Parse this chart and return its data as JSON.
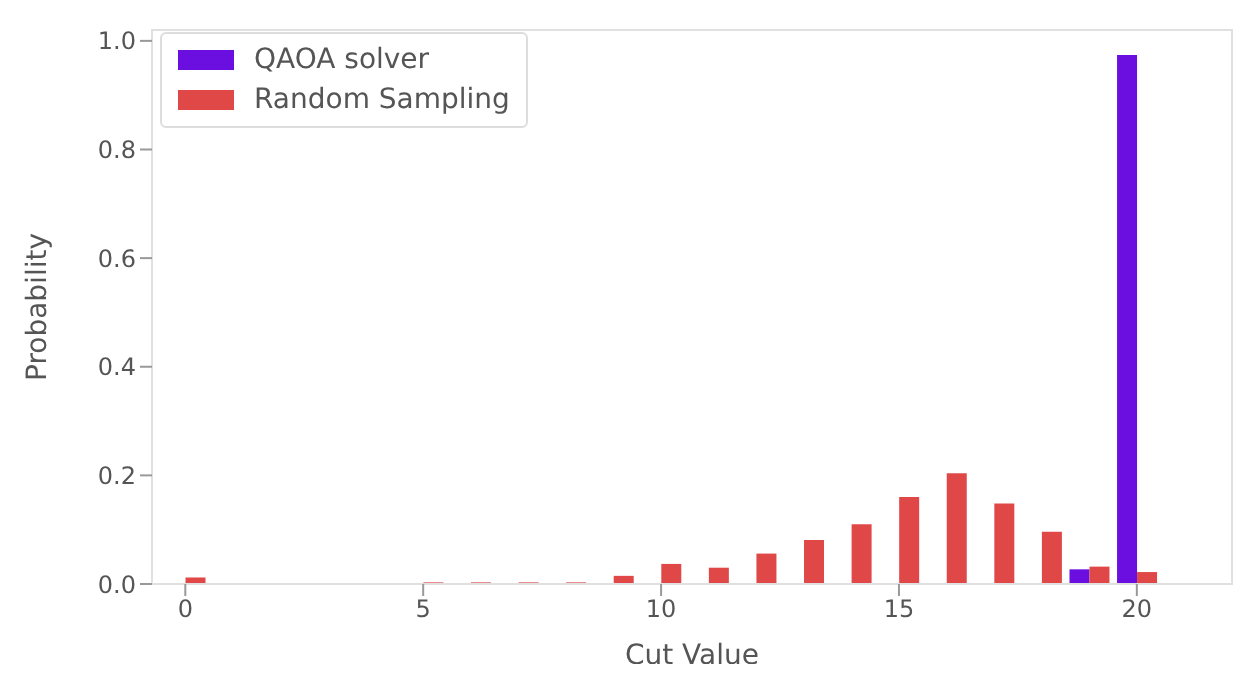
{
  "chart_data": {
    "type": "bar",
    "xlabel": "Cut Value",
    "ylabel": "Probability",
    "x": [
      0,
      1,
      2,
      3,
      4,
      5,
      6,
      7,
      8,
      9,
      10,
      11,
      12,
      13,
      14,
      15,
      16,
      17,
      18,
      19,
      20
    ],
    "series": [
      {
        "name": "QAOA solver",
        "color": "#6a0fe0",
        "values": [
          0,
          0,
          0,
          0,
          0,
          0,
          0,
          0,
          0,
          0,
          0,
          0,
          0,
          0,
          0,
          0,
          0,
          0,
          0,
          0.027,
          0.974
        ]
      },
      {
        "name": "Random Sampling",
        "color": "#e04848",
        "values": [
          0.012,
          0,
          0,
          0,
          0,
          0.003,
          0.003,
          0.003,
          0.003,
          0.015,
          0.037,
          0.03,
          0.056,
          0.081,
          0.11,
          0.16,
          0.204,
          0.148,
          0.096,
          0.032,
          0.022
        ]
      }
    ],
    "xlim": [
      -0.7,
      22
    ],
    "xticks": [
      0,
      5,
      10,
      15,
      20
    ],
    "ylim": [
      0,
      1.02
    ],
    "yticks": [
      {
        "value": 0,
        "label": "0.0"
      },
      {
        "value": 0.2,
        "label": "0.2"
      },
      {
        "value": 0.4,
        "label": "0.4"
      },
      {
        "value": 0.6,
        "label": "0.6"
      },
      {
        "value": 0.8,
        "label": "0.8"
      },
      {
        "value": 1,
        "label": "1.0"
      }
    ],
    "grid": false,
    "legend": "top left"
  }
}
